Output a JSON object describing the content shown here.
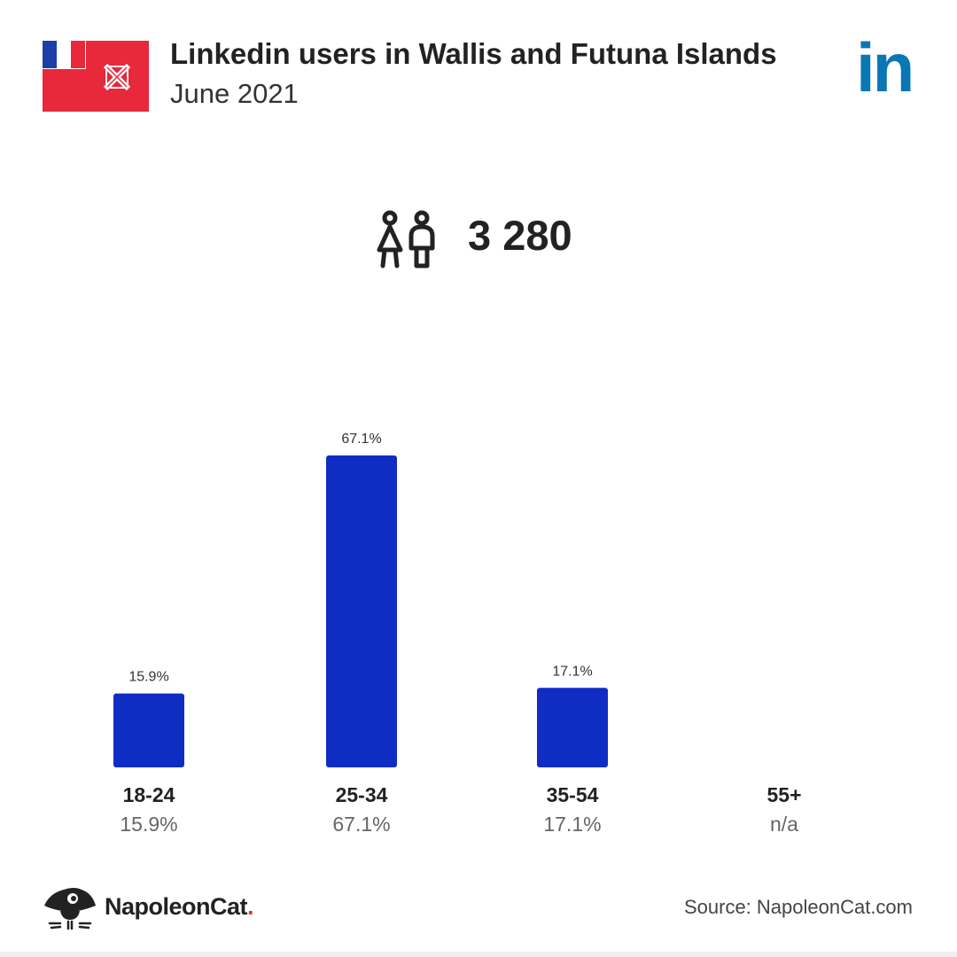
{
  "header": {
    "title": "Linkedin users in Wallis and Futuna Islands",
    "subtitle": "June 2021",
    "logo_text": "in"
  },
  "total": {
    "icon": "users-icon",
    "value": "3 280"
  },
  "colors": {
    "bar": "#0f2cc3",
    "linkedin": "#0a77b5",
    "flag_red": "#e8283b",
    "flag_blue": "#1b3ea8",
    "brand_dot": "#e8322f"
  },
  "chart_data": {
    "type": "bar",
    "categories": [
      "18-24",
      "25-34",
      "35-54",
      "55+"
    ],
    "values": [
      15.9,
      67.1,
      17.1,
      null
    ],
    "bar_labels": [
      "15.9%",
      "67.1%",
      "17.1%",
      ""
    ],
    "category_values": [
      "15.9%",
      "67.1%",
      "17.1%",
      "n/a"
    ],
    "title": "",
    "xlabel": "",
    "ylabel": "",
    "ylim": [
      0,
      67.1
    ],
    "grid": false
  },
  "footer": {
    "brand_name": "NapoleonCat",
    "brand_dot": ".",
    "source": "Source: NapoleonCat.com"
  }
}
